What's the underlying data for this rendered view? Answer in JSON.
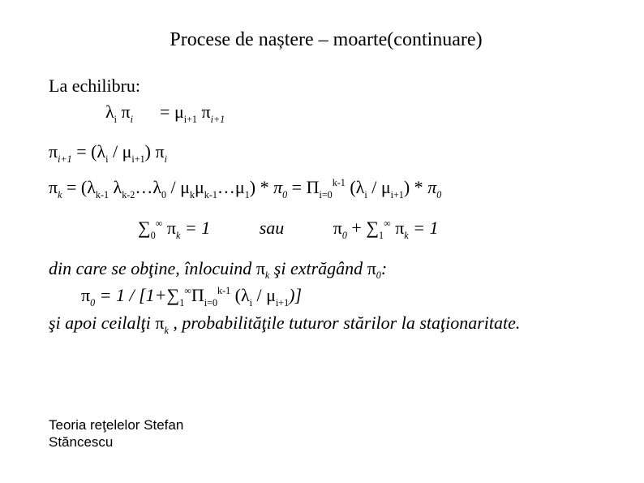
{
  "title": "Procese de naștere – moarte(continuare)",
  "l1": "La echilibru:",
  "l2_a": "λ",
  "l2_b": "i",
  "l2_c": " π",
  "l2_d": "i",
  "l2_sp": "      ",
  "l2_e": "= μ",
  "l2_f": "i+1",
  "l2_g": " π",
  "l2_h": "i+1",
  "l3_a": "π",
  "l3_b": "i+1",
  "l3_c": " = (λ",
  "l3_d": "i",
  "l3_e": "  / μ",
  "l3_f": "i+1",
  "l3_g": ") π",
  "l3_h": "i",
  "l4_a": "π",
  "l4_b": "k",
  "l4_c": " =  (λ",
  "l4_d": "k-1",
  "l4_e": " λ",
  "l4_f": "k-2",
  "l4_g": "…λ",
  "l4_h": "0",
  "l4_i": " / μ",
  "l4_j": "k",
  "l4_k": "μ",
  "l4_l": "k-1",
  "l4_m": "…μ",
  "l4_n": "1",
  "l4_o": ") * ",
  "l4_p": "π",
  "l4_q": "0",
  "l4_r": " = Π",
  "l4_s": "i=0",
  "l4_t": "k-1",
  "l4_u": " (λ",
  "l4_v": "i",
  "l4_w": " / μ",
  "l4_x": "i+1",
  "l4_y": ") * ",
  "l4_z": "π",
  "l4_aa": "0",
  "l5_a": "∑",
  "l5_b": "0",
  "l5_c": "∞",
  "l5_d": " π",
  "l5_e": "k",
  "l5_f": " = 1           ",
  "l5_g": "sau",
  "l5_h": "           π",
  "l5_i": "0",
  "l5_j": " + ∑",
  "l5_k": "1",
  "l5_l": "∞",
  "l5_m": " π",
  "l5_n": "k",
  "l5_o": " = 1",
  "l6_a": "din care se obţine, înlocuind",
  "l6_b": " π",
  "l6_c": "k",
  "l6_d": " şi extrăgând",
  "l6_e": " π",
  "l6_f": "0",
  "l6_g": ":",
  "l7_a": "π",
  "l7_b": "0",
  "l7_c": " = 1 / [1+∑",
  "l7_d": "1",
  "l7_e": "∞",
  "l7_f": "Π",
  "l7_g": "i=0",
  "l7_h": "k-1",
  "l7_i": " (λ",
  "l7_j": "i",
  "l7_k": "  / μ",
  "l7_l": "i+1",
  "l7_m": ")]",
  "l8_a": "şi apoi  ceilalţi  ",
  "l8_b": "π",
  "l8_c": "k",
  "l8_d": " , probabilităţile tuturor stărilor la staţionaritate.",
  "footer1": "Teoria reţelelor Stefan",
  "footer2": "Stăncescu"
}
